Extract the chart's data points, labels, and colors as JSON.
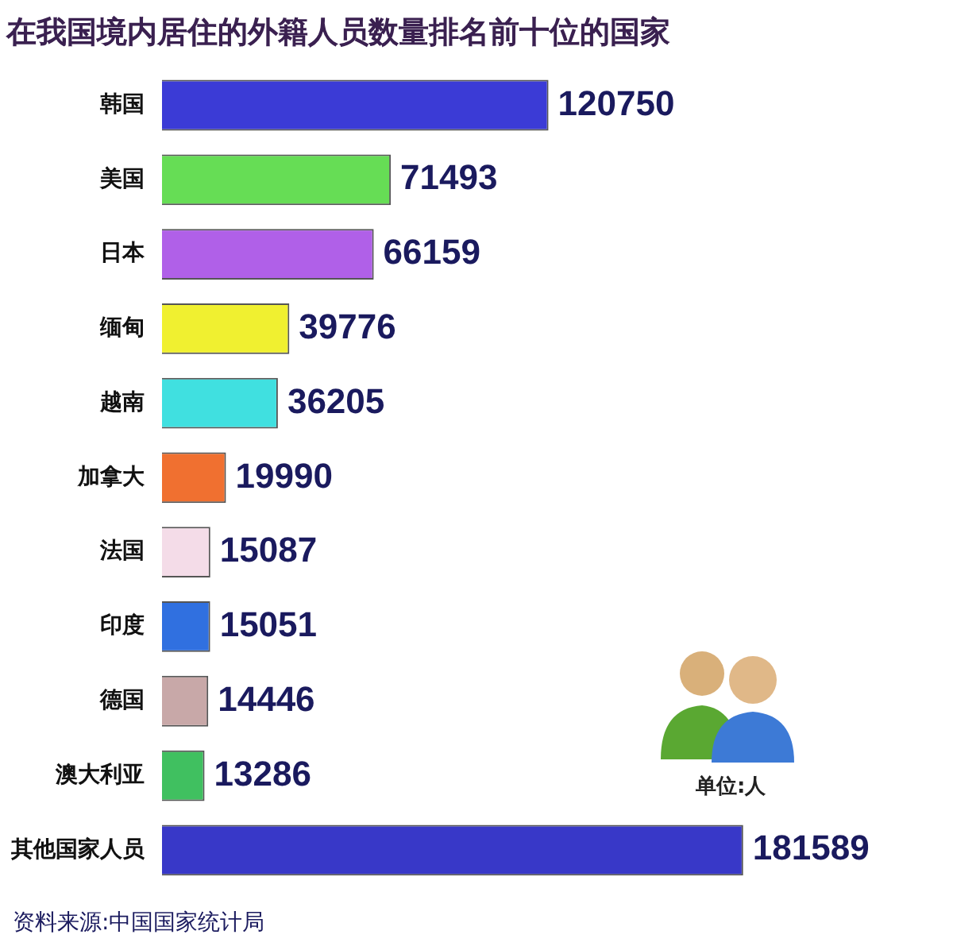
{
  "chart_data": {
    "type": "bar",
    "orientation": "horizontal",
    "title": "在我国境内居住的外籍人员数量排名前十位的国家",
    "categories": [
      "韩国",
      "美国",
      "日本",
      "缅甸",
      "越南",
      "加拿大",
      "法国",
      "印度",
      "德国",
      "澳大利亚",
      "其他国家人员"
    ],
    "values": [
      120750,
      71493,
      66159,
      39776,
      36205,
      19990,
      15087,
      15051,
      14446,
      13286,
      181589
    ],
    "colors": [
      "#3b3bd6",
      "#66dd55",
      "#b060e8",
      "#f0f030",
      "#40e0e0",
      "#f07030",
      "#f4dce8",
      "#3070e0",
      "#c8a8a8",
      "#40c060",
      "#3838c8"
    ],
    "data_labels": true,
    "legend": false,
    "tick_labels": "y",
    "annotations": [
      "单位:人",
      "资料来源:中国国家统计局"
    ]
  }
}
